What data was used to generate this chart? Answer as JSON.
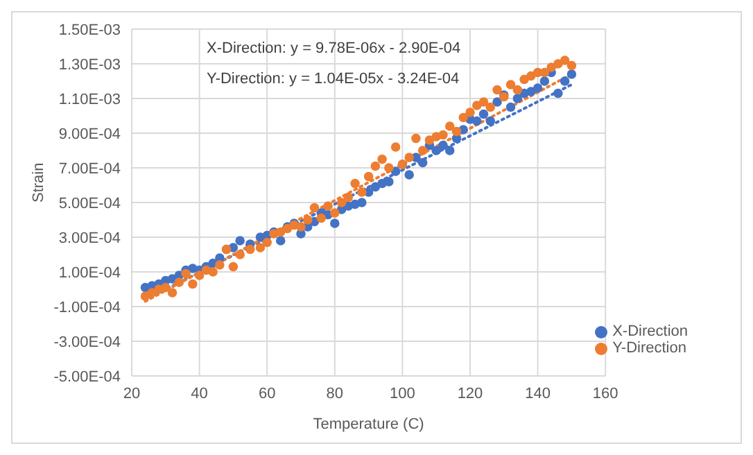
{
  "chart_data": {
    "type": "scatter",
    "xlabel": "Temperature (C)",
    "ylabel": "Strain",
    "xlim": [
      20,
      160
    ],
    "xticks": [
      20,
      40,
      60,
      80,
      100,
      120,
      140,
      160
    ],
    "ylim": [
      -0.0005,
      0.0015
    ],
    "yticks": [
      {
        "value": -0.0005,
        "label": "-5.00E-04"
      },
      {
        "value": -0.0003,
        "label": "-3.00E-04"
      },
      {
        "value": -0.0001,
        "label": "-1.00E-04"
      },
      {
        "value": 0.0001,
        "label": "1.00E-04"
      },
      {
        "value": 0.0003,
        "label": "3.00E-04"
      },
      {
        "value": 0.0005,
        "label": "5.00E-04"
      },
      {
        "value": 0.0007,
        "label": "7.00E-04"
      },
      {
        "value": 0.0009,
        "label": "9.00E-04"
      },
      {
        "value": 0.0011,
        "label": "1.10E-03"
      },
      {
        "value": 0.0013,
        "label": "1.30E-03"
      },
      {
        "value": 0.0015,
        "label": "1.50E-03"
      }
    ],
    "grid": true,
    "legend": "bottom right",
    "marker": "circle",
    "annotations": [
      "X-Direction: y = 9.78E-06x - 2.90E-04",
      "Y-Direction: y = 1.04E-05x - 3.24E-04"
    ],
    "series": [
      {
        "name": "X-Direction",
        "color": "#4472c4",
        "x": [
          24,
          26,
          28,
          30,
          32,
          34,
          36,
          38,
          40,
          42,
          44,
          46,
          48,
          50,
          52,
          55,
          58,
          60,
          62,
          64,
          66,
          68,
          70,
          72,
          74,
          76,
          78,
          80,
          82,
          84,
          86,
          88,
          90,
          92,
          94,
          96,
          98,
          100,
          102,
          104,
          106,
          108,
          110,
          112,
          114,
          116,
          118,
          120,
          122,
          124,
          126,
          128,
          130,
          132,
          134,
          136,
          138,
          140,
          142,
          144,
          146,
          148,
          150
        ],
        "values": [
          1e-05,
          2e-05,
          3e-05,
          5e-05,
          6e-05,
          8e-05,
          0.00011,
          0.00012,
          0.00011,
          0.00013,
          0.00015,
          0.00018,
          0.00023,
          0.00024,
          0.00028,
          0.00026,
          0.0003,
          0.00031,
          0.00033,
          0.00028,
          0.00036,
          0.00038,
          0.00032,
          0.00036,
          0.00039,
          0.00044,
          0.00043,
          0.00038,
          0.00046,
          0.00048,
          0.00049,
          0.0005,
          0.00056,
          0.00059,
          0.00061,
          0.00062,
          0.00068,
          0.00072,
          0.00066,
          0.00076,
          0.00073,
          0.00083,
          0.0008,
          0.00083,
          0.0008,
          0.00087,
          0.00092,
          0.00098,
          0.00097,
          0.00101,
          0.00097,
          0.00108,
          0.00112,
          0.00105,
          0.0011,
          0.00113,
          0.00114,
          0.00116,
          0.0012,
          0.00125,
          0.00113,
          0.0012,
          0.00124
        ]
      },
      {
        "name": "Y-Direction",
        "color": "#ed7d31",
        "x": [
          24,
          26,
          28,
          30,
          32,
          34,
          36,
          38,
          40,
          42,
          44,
          46,
          48,
          50,
          52,
          55,
          58,
          60,
          62,
          64,
          66,
          68,
          70,
          72,
          74,
          76,
          78,
          80,
          82,
          84,
          86,
          88,
          90,
          92,
          94,
          96,
          98,
          100,
          102,
          104,
          106,
          108,
          110,
          112,
          114,
          116,
          118,
          120,
          122,
          124,
          126,
          128,
          130,
          132,
          134,
          136,
          138,
          140,
          142,
          144,
          146,
          148,
          150
        ],
        "values": [
          -4e-05,
          -2e-05,
          0,
          1e-05,
          -2e-05,
          4e-05,
          9e-05,
          3e-05,
          8e-05,
          0.00011,
          0.0001,
          0.00014,
          0.00023,
          0.00013,
          0.0002,
          0.00023,
          0.00024,
          0.00027,
          0.00032,
          0.00033,
          0.00035,
          0.00037,
          0.00036,
          0.0004,
          0.00047,
          0.00041,
          0.00048,
          0.00044,
          0.0005,
          0.00053,
          0.00061,
          0.00056,
          0.00065,
          0.00071,
          0.00075,
          0.0007,
          0.00082,
          0.00072,
          0.00076,
          0.00087,
          0.0008,
          0.00086,
          0.00088,
          0.00089,
          0.00094,
          0.00091,
          0.00099,
          0.00102,
          0.00106,
          0.00108,
          0.00105,
          0.00115,
          0.00111,
          0.00118,
          0.00115,
          0.00121,
          0.00123,
          0.00125,
          0.00125,
          0.00128,
          0.0013,
          0.00132,
          0.00129
        ]
      },
      {
        "type": "line",
        "line_style": "dotted",
        "marker": "none",
        "color": "#4472c4",
        "x": [
          24,
          150
        ],
        "values": [
          -6e-05,
          0.00118
        ]
      },
      {
        "type": "line",
        "line_style": "dotted",
        "marker": "none",
        "color": "#ed7d31",
        "x": [
          24,
          150
        ],
        "values": [
          -7e-05,
          0.00124
        ]
      }
    ]
  }
}
